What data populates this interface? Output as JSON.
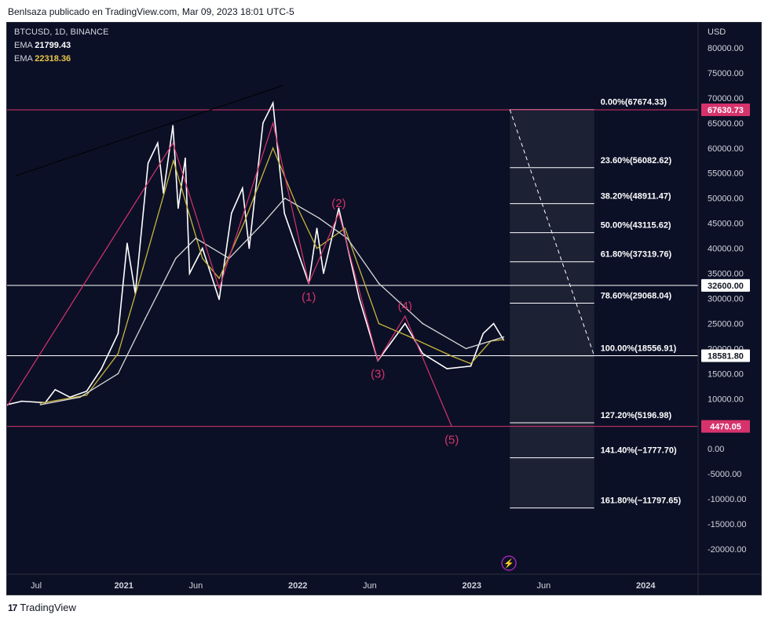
{
  "header": {
    "text": "Benlsaza publicado en TradingView.com, Mar 09, 2023 18:01 UTC-5"
  },
  "legend": {
    "symbol": "BTCUSD, 1D, BINANCE",
    "ema1_label": "EMA",
    "ema1_value": "21799.43",
    "ema2_label": "EMA",
    "ema2_value": "22318.36"
  },
  "footer": {
    "brand": "TradingView"
  },
  "colors": {
    "background": "#0c1026",
    "ema_fast": "#c8b43c",
    "ema_slow": "#d8d8d8",
    "price": "#ffffff",
    "wave": "#d6336c",
    "fib_zone": "#2a2f3f"
  },
  "chart_data": {
    "type": "line",
    "title": "BTCUSD, 1D, BINANCE",
    "currency": "USD",
    "ylim": [
      -25000,
      85000
    ],
    "yticks": [
      80000,
      75000,
      70000,
      65000,
      60000,
      55000,
      50000,
      45000,
      40000,
      35000,
      30000,
      25000,
      20000,
      15000,
      10000,
      5000,
      0,
      -5000,
      -10000,
      -15000,
      -20000
    ],
    "ytick_labels": [
      "80000.00",
      "75000.00",
      "70000.00",
      "65000.00",
      "60000.00",
      "55000.00",
      "50000.00",
      "45000.00",
      "40000.00",
      "35000.00",
      "30000.00",
      "25000.00",
      "20000.00",
      "15000.00",
      "10000.00",
      "5000.00",
      "0.00",
      "-5000.00",
      "-10000.00",
      "-15000.00",
      "-20000.00"
    ],
    "xlim": [
      "2020-05-01",
      "2024-04-20"
    ],
    "xticks": [
      "2020-07-01",
      "2021-01-01",
      "2021-06-01",
      "2022-01-01",
      "2022-06-01",
      "2023-01-01",
      "2023-06-01",
      "2024-01-01"
    ],
    "xtick_labels": [
      "Jul",
      "2021",
      "Jun",
      "2022",
      "Jun",
      "2023",
      "Jun",
      "2024"
    ],
    "series": [
      {
        "name": "BTCUSD",
        "points": [
          [
            "2020-05-01",
            8800
          ],
          [
            "2020-06-01",
            9500
          ],
          [
            "2020-07-20",
            9200
          ],
          [
            "2020-08-10",
            11800
          ],
          [
            "2020-09-10",
            10300
          ],
          [
            "2020-10-15",
            11500
          ],
          [
            "2020-11-15",
            16000
          ],
          [
            "2020-12-20",
            23000
          ],
          [
            "2021-01-08",
            41000
          ],
          [
            "2021-01-25",
            31000
          ],
          [
            "2021-02-21",
            57000
          ],
          [
            "2021-03-13",
            61000
          ],
          [
            "2021-03-25",
            51000
          ],
          [
            "2021-04-14",
            64500
          ],
          [
            "2021-04-25",
            48000
          ],
          [
            "2021-05-10",
            58000
          ],
          [
            "2021-05-19",
            35000
          ],
          [
            "2021-06-15",
            40000
          ],
          [
            "2021-07-20",
            29800
          ],
          [
            "2021-08-15",
            47000
          ],
          [
            "2021-09-07",
            52000
          ],
          [
            "2021-09-21",
            40000
          ],
          [
            "2021-10-20",
            65000
          ],
          [
            "2021-11-10",
            69000
          ],
          [
            "2021-11-26",
            54000
          ],
          [
            "2021-12-04",
            47000
          ],
          [
            "2022-01-24",
            33000
          ],
          [
            "2022-02-10",
            44000
          ],
          [
            "2022-02-24",
            35000
          ],
          [
            "2022-03-28",
            48000
          ],
          [
            "2022-05-10",
            30000
          ],
          [
            "2022-06-18",
            17600
          ],
          [
            "2022-08-14",
            25000
          ],
          [
            "2022-09-20",
            19000
          ],
          [
            "2022-11-10",
            16000
          ],
          [
            "2022-12-30",
            16500
          ],
          [
            "2023-01-25",
            23000
          ],
          [
            "2023-02-16",
            25000
          ],
          [
            "2023-03-09",
            21700
          ]
        ]
      },
      {
        "name": "EMA",
        "points": [
          [
            "2020-07-10",
            9100
          ],
          [
            "2020-10-15",
            10700
          ],
          [
            "2020-12-20",
            19000
          ],
          [
            "2021-02-10",
            36000
          ],
          [
            "2021-04-15",
            57500
          ],
          [
            "2021-06-15",
            38000
          ],
          [
            "2021-07-20",
            34000
          ],
          [
            "2021-09-10",
            45000
          ],
          [
            "2021-11-10",
            60000
          ],
          [
            "2022-01-01",
            48000
          ],
          [
            "2022-02-10",
            40000
          ],
          [
            "2022-04-10",
            44000
          ],
          [
            "2022-06-20",
            25000
          ],
          [
            "2022-08-20",
            22500
          ],
          [
            "2022-11-20",
            18500
          ],
          [
            "2022-12-30",
            17000
          ],
          [
            "2023-02-10",
            21500
          ],
          [
            "2023-03-09",
            21799.43
          ]
        ]
      },
      {
        "name": "EMA",
        "points": [
          [
            "2020-07-10",
            8800
          ],
          [
            "2020-10-01",
            10300
          ],
          [
            "2020-12-20",
            15000
          ],
          [
            "2021-02-15",
            26000
          ],
          [
            "2021-04-20",
            38000
          ],
          [
            "2021-06-01",
            42000
          ],
          [
            "2021-08-10",
            38000
          ],
          [
            "2021-10-20",
            45000
          ],
          [
            "2021-12-05",
            50000
          ],
          [
            "2022-02-15",
            46000
          ],
          [
            "2022-04-15",
            42000
          ],
          [
            "2022-06-20",
            33000
          ],
          [
            "2022-09-20",
            25000
          ],
          [
            "2022-12-20",
            20000
          ],
          [
            "2023-02-10",
            21500
          ],
          [
            "2023-03-09",
            22318.36
          ]
        ]
      }
    ],
    "wave_count": [
      {
        "label": "",
        "date": "2020-05-01",
        "price": 8500
      },
      {
        "label": "",
        "date": "2021-04-14",
        "price": 61000
      },
      {
        "label": "",
        "date": "2021-07-20",
        "price": 32000
      },
      {
        "label": "",
        "date": "2021-11-10",
        "price": 65000
      },
      {
        "label": "(1)",
        "date": "2022-01-24",
        "price": 33000
      },
      {
        "label": "(2)",
        "date": "2022-03-28",
        "price": 47000
      },
      {
        "label": "(3)",
        "date": "2022-06-18",
        "price": 17600
      },
      {
        "label": "(4)",
        "date": "2022-08-14",
        "price": 26500
      },
      {
        "label": "(5)",
        "date": "2022-11-20",
        "price": 4500
      }
    ],
    "trendline": [
      [
        "2020-05-20",
        54500
      ],
      [
        "2021-12-01",
        72500
      ]
    ],
    "horizontal_lines": [
      {
        "value": 67630.73,
        "label": "67630.73",
        "color": "#d6336c"
      },
      {
        "value": 32600.0,
        "label": "32600.00",
        "color": "#ffffff"
      },
      {
        "value": 18581.8,
        "label": "18581.80",
        "color": "#ffffff"
      },
      {
        "value": 4470.05,
        "label": "4470.05",
        "color": "#d6336c"
      }
    ],
    "fib_levels": [
      {
        "value": 67674.33,
        "label": "0.00%(67674.33)"
      },
      {
        "value": 56082.62,
        "label": "23.60%(56082.62)"
      },
      {
        "value": 48911.47,
        "label": "38.20%(48911.47)"
      },
      {
        "value": 43115.62,
        "label": "50.00%(43115.62)"
      },
      {
        "value": 37319.76,
        "label": "61.80%(37319.76)"
      },
      {
        "value": 29068.04,
        "label": "78.60%(29068.04)"
      },
      {
        "value": 18556.91,
        "label": "100.00%(18556.91)"
      },
      {
        "value": 5196.98,
        "label": "127.20%(5196.98)"
      },
      {
        "value": -1777.7,
        "label": "141.40%(−1777.70)"
      },
      {
        "value": -11797.65,
        "label": "161.80%(−11797.65)"
      }
    ],
    "fib_start_date": "2023-03-22",
    "fib_end_date": "2023-09-15",
    "projection": [
      [
        "2023-03-22",
        67674.33
      ],
      [
        "2023-09-15",
        18556.91
      ]
    ],
    "grid": false,
    "legend": "top-left"
  }
}
